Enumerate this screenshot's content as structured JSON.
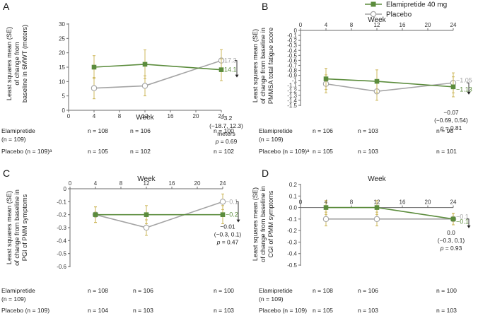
{
  "colors": {
    "treatment": "#5b8c3c",
    "placebo": "#a4a4a4",
    "axis": "#6b6b6b",
    "error": "#c9b14c",
    "bracket": "#222222"
  },
  "legend": [
    {
      "name": "Elamipretide 40 mg",
      "marker": "filled-square",
      "color": "#5b8c3c"
    },
    {
      "name": "Placebo",
      "marker": "open-circle",
      "color": "#a4a4a4"
    }
  ],
  "chart_data": [
    {
      "panel": "A",
      "type": "line",
      "xlabel": "Week",
      "ylabel": [
        "Least squares mean (SE)",
        "of change from",
        "baseline in 6MWT (meters)"
      ],
      "x_ticks": [
        "0",
        "4",
        "8",
        "12",
        "16",
        "20",
        "24"
      ],
      "y_ticks": [
        "30",
        "25",
        "20",
        "15",
        "10",
        "5",
        "0"
      ],
      "xlim": [
        0,
        24
      ],
      "ylim": [
        0,
        30
      ],
      "x": [
        4,
        12,
        24
      ],
      "series": [
        {
          "name": "Elamipretide 40 mg",
          "values": [
            15,
            16,
            14.1
          ],
          "lower": [
            11,
            11,
            10.3
          ],
          "upper": [
            19,
            21,
            17.9
          ]
        },
        {
          "name": "Placebo",
          "values": [
            7.7,
            8.5,
            17.3
          ],
          "lower": [
            4,
            5,
            13.5
          ],
          "upper": [
            11.4,
            12,
            21.1
          ]
        }
      ],
      "end_labels": {
        "treatment": "14.1",
        "placebo": "17.3"
      },
      "annotation": [
        "−3.2",
        "(−18.7, 12.3)",
        "meters",
        "p = 0.69"
      ],
      "n_rows": [
        {
          "label": [
            "Elamipretide",
            "(n = 109)"
          ],
          "values": [
            "n = 108",
            "n = 106",
            "n = 100"
          ]
        },
        {
          "label": [
            "Placebo (n = 109)ᵃ"
          ],
          "values": [
            "n = 105",
            "n = 102",
            "n = 102"
          ]
        }
      ]
    },
    {
      "panel": "B",
      "type": "line",
      "xlabel": "Week",
      "ylabel": [
        "Least squares mean (SE)",
        "of change from baseline in",
        "PMMSA total fatigue score"
      ],
      "x_ticks": [
        "0",
        "4",
        "8",
        "12",
        "16",
        "20",
        "24"
      ],
      "y_ticks": [
        "0",
        "-0.1",
        "-0.2",
        "-0.3",
        "-0.4",
        "-0.5",
        "-0.6",
        "-0.7",
        "-0.8",
        "-0.9",
        "-1",
        "-1.1",
        "-1.2",
        "-1.3",
        "-1.4",
        "-1.5"
      ],
      "xlim": [
        0,
        24
      ],
      "ylim": [
        -1.5,
        0
      ],
      "x": [
        4,
        12,
        24
      ],
      "series": [
        {
          "name": "Elamipretide 40 mg",
          "values": [
            -0.97,
            -1.02,
            -1.13
          ],
          "lower": [
            -1.18,
            -1.25,
            -1.33
          ],
          "upper": [
            -0.76,
            -0.79,
            -0.93
          ]
        },
        {
          "name": "Placebo",
          "values": [
            -1.07,
            -1.22,
            -1.05
          ],
          "lower": [
            -1.25,
            -1.4,
            -1.25
          ],
          "upper": [
            -0.89,
            -1.04,
            -0.85
          ]
        }
      ],
      "end_labels": {
        "treatment": "−1.13",
        "placebo": "−1.05"
      },
      "annotation": [
        "−0.07",
        "(−0.69, 0.54)",
        "p = 0.81"
      ],
      "n_rows": [
        {
          "label": [
            "Elamipretide",
            "(n = 109)"
          ],
          "values": [
            "n = 106",
            "n = 103",
            "n = 98"
          ]
        },
        {
          "label": [
            "Placebo (n = 109)ᵃ"
          ],
          "values": [
            "n = 105",
            "n = 103",
            "n = 101"
          ]
        }
      ]
    },
    {
      "panel": "C",
      "type": "line",
      "xlabel": "Week",
      "ylabel": [
        "Least squares mean (SE)",
        "of change from baseline in",
        "PGI of PMM symptoms"
      ],
      "x_ticks": [
        "0",
        "4",
        "8",
        "12",
        "16",
        "20",
        "24"
      ],
      "y_ticks": [
        "0",
        "-0.1",
        "-0.2",
        "-0.3",
        "-0.4",
        "-0.5",
        "-0.6"
      ],
      "xlim": [
        0,
        24
      ],
      "ylim": [
        -0.6,
        0
      ],
      "x": [
        4,
        12,
        24
      ],
      "series": [
        {
          "name": "Elamipretide 40 mg",
          "values": [
            -0.2,
            -0.2,
            -0.2
          ],
          "lower": [
            -0.26,
            -0.27,
            -0.27
          ],
          "upper": [
            -0.14,
            -0.13,
            -0.13
          ]
        },
        {
          "name": "Placebo",
          "values": [
            -0.2,
            -0.3,
            -0.1
          ],
          "lower": [
            -0.26,
            -0.36,
            -0.16
          ],
          "upper": [
            -0.14,
            -0.24,
            -0.04
          ]
        }
      ],
      "end_labels": {
        "treatment": "−0.2",
        "placebo": "−0.1"
      },
      "annotation": [
        "−0.01",
        "(−0.3, 0.1)",
        "p = 0.47"
      ],
      "n_rows": [
        {
          "label": [
            "Elamipretide",
            "(n = 109)"
          ],
          "values": [
            "n = 108",
            "n = 106",
            "n = 100"
          ]
        },
        {
          "label": [
            "Placebo (n = 109)"
          ],
          "values": [
            "n = 104",
            "n = 103",
            "n = 103"
          ]
        }
      ]
    },
    {
      "panel": "D",
      "type": "line",
      "xlabel": "Week",
      "ylabel": [
        "Least squares mean (SE)",
        "of change from baseline in",
        "CGI of PMM symptoms"
      ],
      "x_ticks": [
        "0",
        "4",
        "8",
        "12",
        "16",
        "20",
        "24"
      ],
      "y_ticks": [
        "0.2",
        "0.1",
        "0.0",
        "-0.1",
        "-0.2",
        "-0.3",
        "-0.4",
        "-0.5"
      ],
      "xlim": [
        0,
        24
      ],
      "ylim": [
        -0.5,
        0.2
      ],
      "x": [
        4,
        12,
        24
      ],
      "series": [
        {
          "name": "Elamipretide 40 mg",
          "values": [
            0,
            0,
            -0.1
          ],
          "lower": [
            -0.06,
            -0.06,
            -0.15
          ],
          "upper": [
            0.06,
            0.06,
            -0.05
          ]
        },
        {
          "name": "Placebo",
          "values": [
            -0.1,
            -0.1,
            -0.1
          ],
          "lower": [
            -0.16,
            -0.16,
            -0.15
          ],
          "upper": [
            -0.04,
            -0.04,
            -0.05
          ]
        }
      ],
      "end_labels": {
        "treatment": "−0.1",
        "placebo": "−0.1"
      },
      "annotation": [
        "0.0",
        "(−0.3, 0.1)",
        "p = 0.93"
      ],
      "n_rows": [
        {
          "label": [
            "Elamipretide",
            "(n = 109)"
          ],
          "values": [
            "n = 108",
            "n = 106",
            "n = 100"
          ]
        },
        {
          "label": [
            "Placebo (n = 109)"
          ],
          "values": [
            "n = 105",
            "n = 103",
            "n = 103"
          ]
        }
      ]
    }
  ]
}
